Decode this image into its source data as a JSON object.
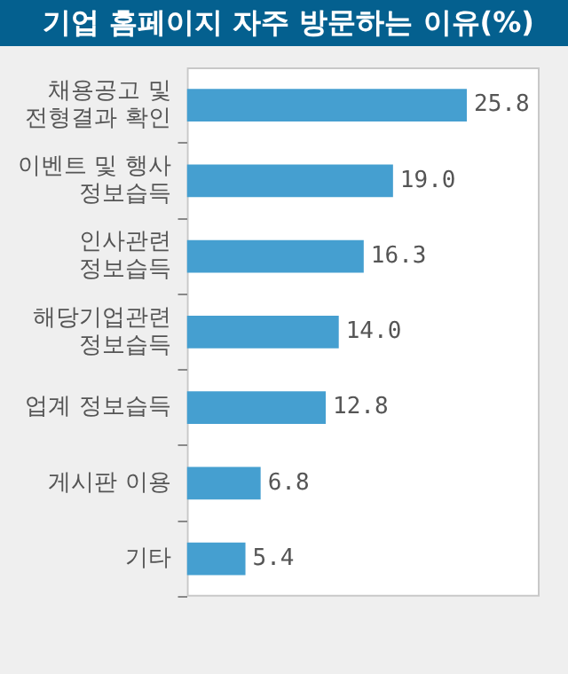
{
  "chart_data": {
    "type": "bar",
    "orientation": "horizontal",
    "title": "기업 홈페이지 자주 방문하는 이유(%)",
    "categories": [
      "채용공고 및\n전형결과 확인",
      "이벤트 및 행사\n정보습득",
      "인사관련\n정보습득",
      "해당기업관련\n정보습득",
      "업계 정보습득",
      "게시판 이용",
      "기타"
    ],
    "values": [
      25.8,
      19.0,
      16.3,
      14.0,
      12.8,
      6.8,
      5.4
    ],
    "value_labels": [
      "25.8",
      "19.0",
      "16.3",
      "14.0",
      "12.8",
      "6.8",
      "5.4"
    ],
    "color": "#459fd0",
    "tick_labels": "y",
    "grid": false,
    "legend": false
  }
}
